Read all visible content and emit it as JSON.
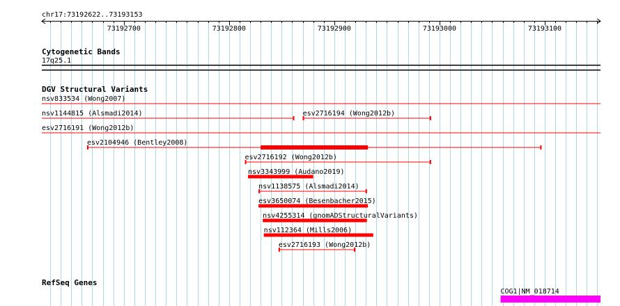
{
  "location": "chr17:73192622..73193153",
  "ruler": {
    "start": 73192622,
    "end": 73193153,
    "major_ticks": [
      "73192700",
      "73192800",
      "73192900",
      "73193000",
      "73193100"
    ]
  },
  "tracks": {
    "cytoband": {
      "title": "Cytogenetic Bands",
      "band": "17q25.1"
    },
    "dgv": {
      "title": "DGV Structural Variants",
      "features": [
        {
          "label": "nsv833534 (Wong2007)",
          "start": 73192583,
          "end": 73193200,
          "style": "thin",
          "extends_left": true,
          "extends_right": true,
          "lane": 0,
          "label_on_left": true
        },
        {
          "label": "nsv1144815 (Alsmadi2014)",
          "start": 73192583,
          "end": 73192862,
          "style": "thin",
          "extends_left": true,
          "extends_right": false,
          "lane": 1,
          "label_on_left": true
        },
        {
          "label": "esv2716194 (Wong2012b)",
          "start": 73192870,
          "end": 73192992,
          "style": "thin",
          "extends_left": false,
          "extends_right": false,
          "lane": 1
        },
        {
          "label": "esv2716191 (Wong2012b)",
          "start": 73192583,
          "end": 73193200,
          "style": "thin",
          "extends_left": true,
          "extends_right": true,
          "lane": 2,
          "label_on_left": true
        },
        {
          "label": "esv2104946 (Bentley2008)",
          "start": 73192665,
          "end": 73193097,
          "style": "thin",
          "extends_left": false,
          "extends_right": false,
          "lane": 3,
          "overlay": {
            "start": 73192830,
            "end": 73192932
          }
        },
        {
          "label": "esv2716192 (Wong2012b)",
          "start": 73192815,
          "end": 73192992,
          "style": "thin",
          "extends_left": false,
          "extends_right": false,
          "lane": 4
        },
        {
          "label": "nsv3343999 (Audano2019)",
          "start": 73192818,
          "end": 73192880,
          "style": "thick",
          "extends_left": false,
          "extends_right": false,
          "lane": 5
        },
        {
          "label": "nsv1138575 (Alsmadi2014)",
          "start": 73192828,
          "end": 73192931,
          "style": "thin",
          "extends_left": false,
          "extends_right": false,
          "lane": 6
        },
        {
          "label": "esv3650074 (Besenbacher2015)",
          "start": 73192828,
          "end": 73192932,
          "style": "thick",
          "extends_left": false,
          "extends_right": false,
          "lane": 7
        },
        {
          "label": "nsv4255314 (gnomADStructuralVariants)",
          "start": 73192832,
          "end": 73192931,
          "style": "thick",
          "extends_left": false,
          "extends_right": false,
          "lane": 8
        },
        {
          "label": "nsv112364 (Mills2006)",
          "start": 73192833,
          "end": 73192937,
          "style": "thick",
          "extends_left": false,
          "extends_right": false,
          "lane": 9
        },
        {
          "label": "esv2716193 (Wong2012b)",
          "start": 73192847,
          "end": 73192920,
          "style": "thin",
          "extends_left": false,
          "extends_right": false,
          "lane": 10
        }
      ]
    },
    "refseq": {
      "title": "RefSeq Genes",
      "features": [
        {
          "label": "COG1|NM_018714",
          "start": 73193058,
          "end": 73193200,
          "extends_right": true
        }
      ]
    }
  },
  "colors": {
    "variant": "#ff0000",
    "gene": "#ff00ff",
    "grid": "#add8e6",
    "text": "#000000"
  }
}
